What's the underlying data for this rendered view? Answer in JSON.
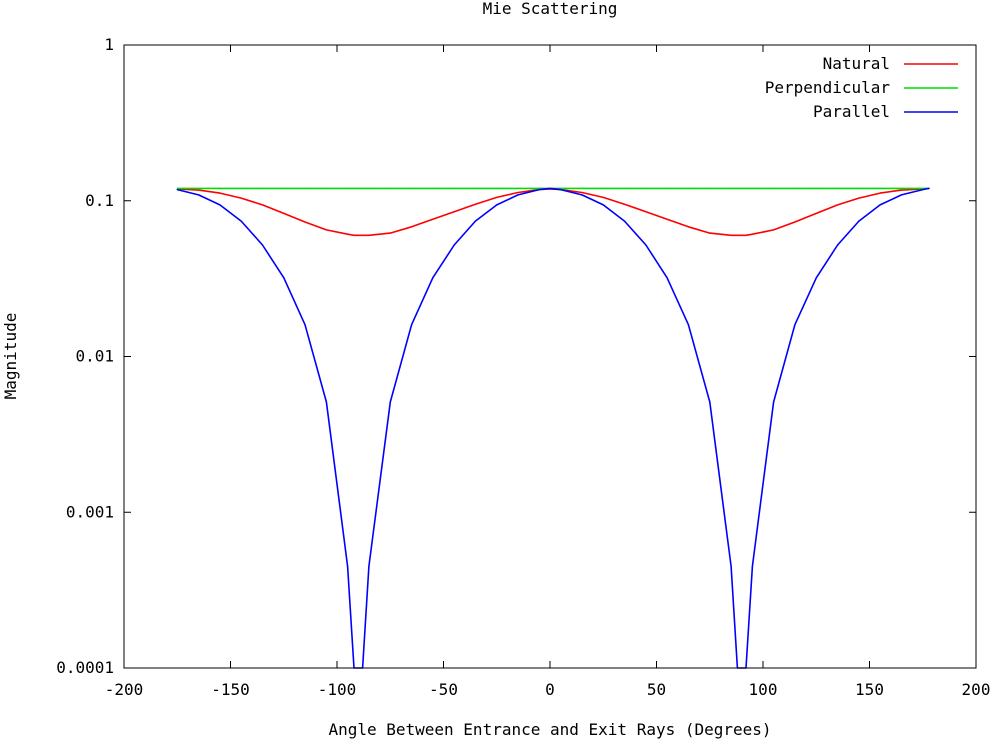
{
  "chart_data": {
    "type": "line",
    "title": "Mie Scattering",
    "xlabel": "Angle Between Entrance and Exit Rays (Degrees)",
    "ylabel": "Magnitude",
    "xlim": [
      -200,
      200
    ],
    "ylim": [
      0.0001,
      1
    ],
    "yscale": "log",
    "grid": false,
    "legend_position": "top-right",
    "x_ticks": [
      "-200",
      "-150",
      "-100",
      "-50",
      "0",
      "50",
      "100",
      "150",
      "200"
    ],
    "y_ticks": [
      "0.0001",
      "0.001",
      "0.01",
      "0.1",
      "1"
    ],
    "x": [
      -175,
      -165,
      -155,
      -145,
      -135,
      -125,
      -115,
      -105,
      -95,
      -92,
      -90,
      -88,
      -85,
      -75,
      -65,
      -55,
      -45,
      -35,
      -25,
      -15,
      -5,
      0,
      5,
      15,
      25,
      35,
      45,
      55,
      65,
      75,
      85,
      88,
      90,
      92,
      95,
      105,
      115,
      125,
      135,
      145,
      155,
      165,
      175,
      178
    ],
    "series": [
      {
        "name": "Natural",
        "color": "#ff0000",
        "values": [
          0.119,
          0.117,
          0.112,
          0.104,
          0.094,
          0.083,
          0.073,
          0.065,
          0.061,
          0.06,
          0.06,
          0.06,
          0.06,
          0.062,
          0.068,
          0.076,
          0.085,
          0.095,
          0.105,
          0.113,
          0.118,
          0.119,
          0.118,
          0.113,
          0.105,
          0.095,
          0.085,
          0.076,
          0.068,
          0.062,
          0.06,
          0.06,
          0.06,
          0.06,
          0.061,
          0.065,
          0.073,
          0.083,
          0.094,
          0.104,
          0.112,
          0.117,
          0.119,
          0.12
        ]
      },
      {
        "name": "Perpendicular",
        "color": "#00dd00",
        "values": [
          0.12,
          0.12,
          0.12,
          0.12,
          0.12,
          0.12,
          0.12,
          0.12,
          0.12,
          0.12,
          0.12,
          0.12,
          0.12,
          0.12,
          0.12,
          0.12,
          0.12,
          0.12,
          0.12,
          0.12,
          0.12,
          0.12,
          0.12,
          0.12,
          0.12,
          0.12,
          0.12,
          0.12,
          0.12,
          0.12,
          0.12,
          0.12,
          0.12,
          0.12,
          0.12,
          0.12,
          0.12,
          0.12,
          0.12,
          0.12,
          0.12,
          0.12,
          0.12,
          0.12
        ]
      },
      {
        "name": "Parallel",
        "color": "#0000ff",
        "values": [
          0.118,
          0.109,
          0.094,
          0.074,
          0.052,
          0.032,
          0.016,
          0.0051,
          0.00045,
          0.0001,
          0.0001,
          0.0001,
          0.00045,
          0.0051,
          0.016,
          0.032,
          0.052,
          0.074,
          0.094,
          0.109,
          0.118,
          0.12,
          0.118,
          0.109,
          0.094,
          0.074,
          0.052,
          0.032,
          0.016,
          0.0051,
          0.00045,
          0.0001,
          0.0001,
          0.0001,
          0.00045,
          0.0051,
          0.016,
          0.032,
          0.052,
          0.074,
          0.094,
          0.109,
          0.118,
          0.12
        ]
      }
    ]
  }
}
